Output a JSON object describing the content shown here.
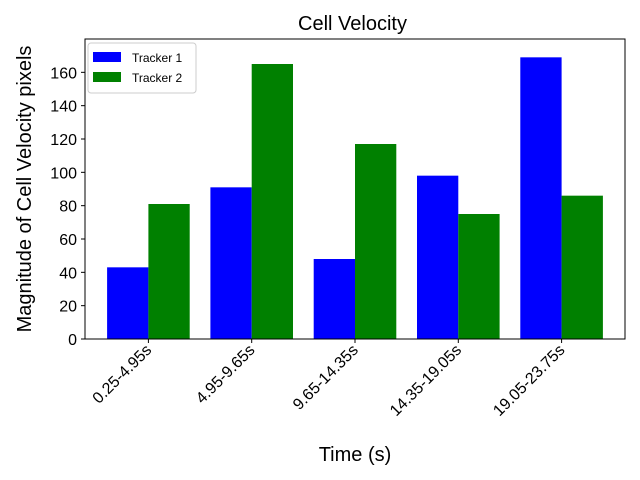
{
  "chart_data": {
    "type": "bar",
    "title": "Cell Velocity",
    "xlabel": "Time (s)",
    "ylabel": "Magnitude of Cell Velocity pixels",
    "categories": [
      "0.25-4.95s",
      "4.95-9.65s",
      "9.65-14.35s",
      "14.35-19.05s",
      "19.05-23.75s"
    ],
    "series": [
      {
        "name": "Tracker 1",
        "color": "#0000ff",
        "values": [
          43,
          91,
          48,
          98,
          169
        ]
      },
      {
        "name": "Tracker 2",
        "color": "#008000",
        "values": [
          81,
          165,
          117,
          75,
          86
        ]
      }
    ],
    "ylim": [
      0,
      180
    ],
    "yticks": [
      0,
      20,
      40,
      60,
      80,
      100,
      120,
      140,
      160
    ],
    "grid": false,
    "legend_position": "top-left"
  }
}
